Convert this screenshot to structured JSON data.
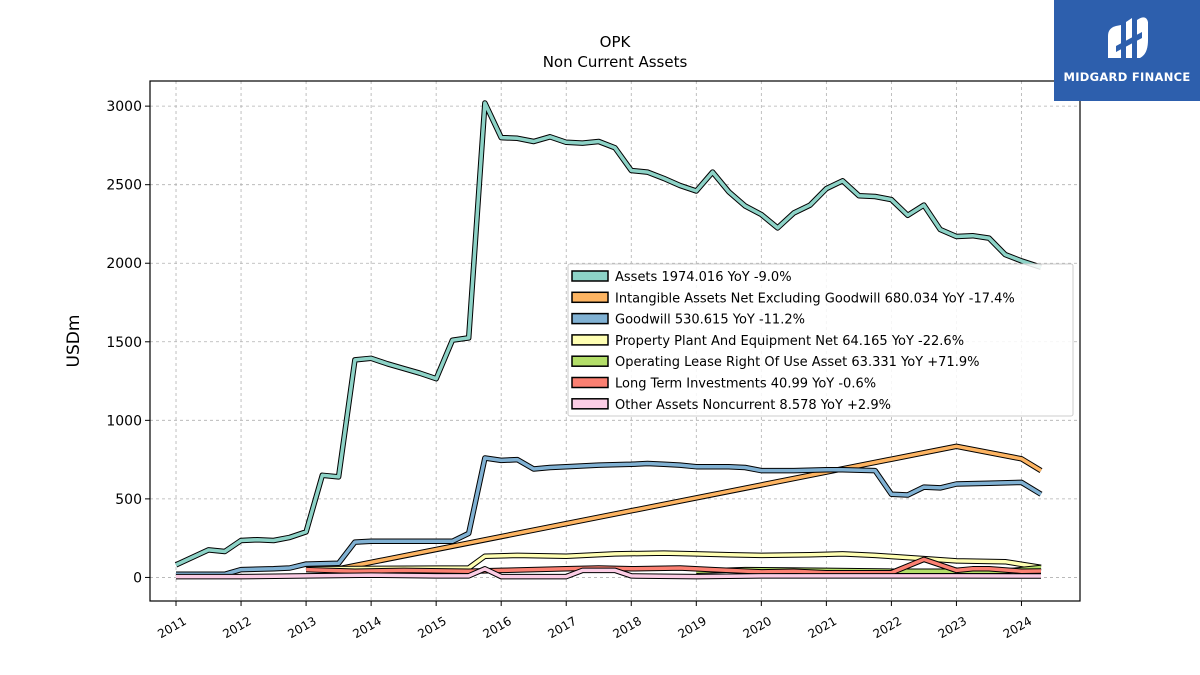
{
  "brand": {
    "name": "MIDGARD FINANCE",
    "bg": "#2d5fad"
  },
  "chart_data": {
    "type": "line",
    "title": "OPK",
    "subtitle": "Non Current  Assets",
    "xlabel": "",
    "ylabel": "USDm",
    "xlim": [
      2010.6,
      2024.9
    ],
    "ylim": [
      -150,
      3160
    ],
    "yticks": [
      0,
      500,
      1000,
      1500,
      2000,
      2500,
      3000
    ],
    "xticks": [
      "2011",
      "2012",
      "2013",
      "2014",
      "2015",
      "2016",
      "2017",
      "2018",
      "2019",
      "2020",
      "2021",
      "2022",
      "2023",
      "2024"
    ],
    "grid": true,
    "legend_position": "center-right",
    "series": [
      {
        "name": "Assets  1974.016 YoY -9.0%",
        "color": "#8dd3c7",
        "points": [
          [
            2011.0,
            80
          ],
          [
            2011.5,
            175
          ],
          [
            2011.75,
            165
          ],
          [
            2012.0,
            235
          ],
          [
            2012.25,
            240
          ],
          [
            2012.5,
            235
          ],
          [
            2012.75,
            255
          ],
          [
            2013.0,
            290
          ],
          [
            2013.25,
            650
          ],
          [
            2013.5,
            640
          ],
          [
            2013.75,
            1385
          ],
          [
            2014.0,
            1395
          ],
          [
            2014.25,
            1360
          ],
          [
            2014.5,
            1330
          ],
          [
            2014.75,
            1300
          ],
          [
            2015.0,
            1265
          ],
          [
            2015.25,
            1510
          ],
          [
            2015.5,
            1525
          ],
          [
            2015.75,
            3020
          ],
          [
            2016.0,
            2800
          ],
          [
            2016.25,
            2795
          ],
          [
            2016.5,
            2775
          ],
          [
            2016.75,
            2805
          ],
          [
            2017.0,
            2770
          ],
          [
            2017.25,
            2765
          ],
          [
            2017.5,
            2775
          ],
          [
            2017.75,
            2735
          ],
          [
            2018.0,
            2590
          ],
          [
            2018.25,
            2580
          ],
          [
            2018.5,
            2540
          ],
          [
            2018.75,
            2495
          ],
          [
            2019.0,
            2460
          ],
          [
            2019.25,
            2580
          ],
          [
            2019.5,
            2455
          ],
          [
            2019.75,
            2365
          ],
          [
            2020.0,
            2310
          ],
          [
            2020.25,
            2225
          ],
          [
            2020.5,
            2320
          ],
          [
            2020.75,
            2370
          ],
          [
            2021.0,
            2475
          ],
          [
            2021.25,
            2525
          ],
          [
            2021.5,
            2430
          ],
          [
            2021.75,
            2425
          ],
          [
            2022.0,
            2405
          ],
          [
            2022.25,
            2305
          ],
          [
            2022.5,
            2370
          ],
          [
            2022.75,
            2215
          ],
          [
            2023.0,
            2170
          ],
          [
            2023.25,
            2175
          ],
          [
            2023.5,
            2160
          ],
          [
            2023.75,
            2055
          ],
          [
            2024.0,
            2015
          ],
          [
            2024.3,
            1974
          ]
        ]
      },
      {
        "name": "Intangible Assets Net Excluding Goodwill  680.034 YoY -17.4%",
        "color": "#fdb462",
        "points": [
          [
            2013.5,
            55
          ],
          [
            2023.0,
            835
          ],
          [
            2024.0,
            755
          ],
          [
            2024.3,
            680
          ]
        ]
      },
      {
        "name": "Goodwill  530.615 YoY -11.2%",
        "color": "#80b1d3",
        "points": [
          [
            2011.0,
            20
          ],
          [
            2011.75,
            20
          ],
          [
            2012.0,
            50
          ],
          [
            2012.5,
            55
          ],
          [
            2012.75,
            60
          ],
          [
            2013.0,
            85
          ],
          [
            2013.5,
            90
          ],
          [
            2013.75,
            225
          ],
          [
            2014.0,
            230
          ],
          [
            2014.5,
            230
          ],
          [
            2015.0,
            230
          ],
          [
            2015.25,
            230
          ],
          [
            2015.5,
            280
          ],
          [
            2015.75,
            760
          ],
          [
            2016.0,
            745
          ],
          [
            2016.25,
            750
          ],
          [
            2016.5,
            690
          ],
          [
            2016.75,
            700
          ],
          [
            2017.0,
            705
          ],
          [
            2017.5,
            715
          ],
          [
            2018.0,
            720
          ],
          [
            2018.25,
            725
          ],
          [
            2018.5,
            720
          ],
          [
            2018.75,
            715
          ],
          [
            2019.0,
            705
          ],
          [
            2019.5,
            705
          ],
          [
            2019.75,
            700
          ],
          [
            2020.0,
            680
          ],
          [
            2020.5,
            680
          ],
          [
            2021.0,
            685
          ],
          [
            2021.25,
            685
          ],
          [
            2021.75,
            680
          ],
          [
            2022.0,
            530
          ],
          [
            2022.25,
            525
          ],
          [
            2022.5,
            575
          ],
          [
            2022.75,
            570
          ],
          [
            2023.0,
            595
          ],
          [
            2023.5,
            600
          ],
          [
            2024.0,
            605
          ],
          [
            2024.3,
            530
          ]
        ]
      },
      {
        "name": "Property Plant And Equipment Net  64.165 YoY -22.6%",
        "color": "#ffffb3",
        "points": [
          [
            2013.0,
            55
          ],
          [
            2015.5,
            60
          ],
          [
            2015.75,
            135
          ],
          [
            2016.25,
            140
          ],
          [
            2017.0,
            135
          ],
          [
            2017.75,
            150
          ],
          [
            2018.5,
            155
          ],
          [
            2019.0,
            150
          ],
          [
            2019.5,
            145
          ],
          [
            2020.0,
            140
          ],
          [
            2020.75,
            145
          ],
          [
            2021.25,
            150
          ],
          [
            2021.75,
            140
          ],
          [
            2022.5,
            120
          ],
          [
            2023.0,
            105
          ],
          [
            2023.75,
            100
          ],
          [
            2024.3,
            64
          ]
        ]
      },
      {
        "name": "Operating Lease Right Of Use Asset  63.331 YoY +71.9%",
        "color": "#b3de69",
        "points": [
          [
            2019.0,
            40
          ],
          [
            2019.75,
            50
          ],
          [
            2021.0,
            45
          ],
          [
            2022.0,
            40
          ],
          [
            2023.0,
            40
          ],
          [
            2023.75,
            40
          ],
          [
            2024.3,
            63
          ]
        ]
      },
      {
        "name": "Long Term Investments  40.99 YoY -0.6%",
        "color": "#fb8072",
        "points": [
          [
            2013.0,
            50
          ],
          [
            2013.75,
            40
          ],
          [
            2014.5,
            45
          ],
          [
            2015.5,
            40
          ],
          [
            2016.0,
            45
          ],
          [
            2017.0,
            55
          ],
          [
            2017.5,
            60
          ],
          [
            2018.0,
            55
          ],
          [
            2018.75,
            60
          ],
          [
            2019.25,
            50
          ],
          [
            2020.0,
            35
          ],
          [
            2020.5,
            40
          ],
          [
            2021.0,
            30
          ],
          [
            2022.0,
            30
          ],
          [
            2022.5,
            115
          ],
          [
            2022.75,
            80
          ],
          [
            2023.0,
            45
          ],
          [
            2023.25,
            55
          ],
          [
            2023.5,
            55
          ],
          [
            2024.0,
            40
          ],
          [
            2024.3,
            41
          ]
        ]
      },
      {
        "name": "Other Assets Noncurrent  8.578 YoY +2.9%",
        "color": "#fccde5",
        "points": [
          [
            2011.0,
            5
          ],
          [
            2012.0,
            5
          ],
          [
            2013.0,
            10
          ],
          [
            2014.0,
            15
          ],
          [
            2015.0,
            10
          ],
          [
            2015.5,
            10
          ],
          [
            2015.75,
            55
          ],
          [
            2016.0,
            5
          ],
          [
            2016.5,
            5
          ],
          [
            2017.0,
            5
          ],
          [
            2017.25,
            45
          ],
          [
            2017.75,
            45
          ],
          [
            2018.0,
            10
          ],
          [
            2019.0,
            5
          ],
          [
            2020.0,
            10
          ],
          [
            2021.0,
            10
          ],
          [
            2022.0,
            10
          ],
          [
            2023.0,
            10
          ],
          [
            2024.3,
            9
          ]
        ]
      }
    ]
  }
}
